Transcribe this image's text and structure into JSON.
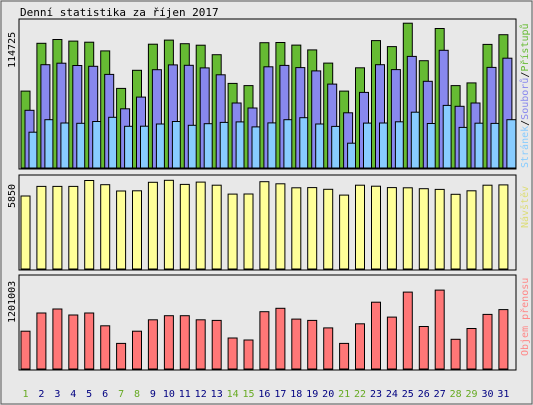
{
  "chart_data": [
    {
      "type": "bar",
      "title": "Denní statistika za říjen 2017",
      "ylabel_max": "114725",
      "legend": [
        "Stránek",
        "Souborů",
        "Přístupů"
      ],
      "categories": [
        "1",
        "2",
        "3",
        "4",
        "5",
        "6",
        "7",
        "8",
        "9",
        "10",
        "11",
        "12",
        "13",
        "14",
        "15",
        "16",
        "17",
        "18",
        "19",
        "20",
        "21",
        "22",
        "23",
        "24",
        "25",
        "26",
        "27",
        "28",
        "29",
        "30",
        "31"
      ],
      "ymax": 114725,
      "series": [
        {
          "name": "Přístupů",
          "color": "#66bb33",
          "values": [
            70000,
            113500,
            117000,
            115500,
            114500,
            106600,
            72500,
            89000,
            112700,
            116500,
            113200,
            111800,
            103200,
            77000,
            75000,
            114100,
            114300,
            111900,
            107500,
            95500,
            70000,
            91200,
            116000,
            110500,
            131800,
            97700,
            127000,
            75000,
            77500,
            112500,
            121400
          ]
        },
        {
          "name": "Souborů",
          "color": "#8888ee",
          "values": [
            52500,
            94100,
            95400,
            93300,
            92600,
            85200,
            53900,
            64600,
            89500,
            93900,
            93500,
            91100,
            84900,
            59200,
            54600,
            92100,
            93400,
            91400,
            88400,
            76400,
            50300,
            68800,
            94100,
            89600,
            101600,
            78900,
            107200,
            56200,
            59200,
            91600,
            100000
          ]
        },
        {
          "name": "Stránek",
          "color": "#88ccff",
          "values": [
            32600,
            44000,
            41000,
            40700,
            42300,
            46200,
            38000,
            38100,
            40100,
            42300,
            38900,
            40300,
            41500,
            42000,
            37400,
            41100,
            44000,
            45800,
            40100,
            37900,
            22600,
            40900,
            41000,
            42100,
            50800,
            40500,
            57000,
            37000,
            40800,
            40600,
            44000
          ]
        }
      ]
    },
    {
      "type": "bar",
      "ylabel_max": "5850",
      "legend": [
        "Návštěv"
      ],
      "categories": [
        "1",
        "2",
        "3",
        "4",
        "5",
        "6",
        "7",
        "8",
        "9",
        "10",
        "11",
        "12",
        "13",
        "14",
        "15",
        "16",
        "17",
        "18",
        "19",
        "20",
        "21",
        "22",
        "23",
        "24",
        "25",
        "26",
        "27",
        "28",
        "29",
        "30",
        "31"
      ],
      "ymax": 5850,
      "series": [
        {
          "name": "Návštěv",
          "color": "#ffff99",
          "values": [
            4800,
            5430,
            5430,
            5430,
            5820,
            5540,
            5130,
            5140,
            5700,
            5830,
            5560,
            5710,
            5510,
            4920,
            4930,
            5740,
            5600,
            5340,
            5350,
            5240,
            4860,
            5510,
            5440,
            5350,
            5340,
            5280,
            5230,
            4910,
            5140,
            5510,
            5530
          ]
        }
      ]
    },
    {
      "type": "bar",
      "ylabel_max": "1201003",
      "legend": [
        "Objem přenosu"
      ],
      "categories": [
        "1",
        "2",
        "3",
        "4",
        "5",
        "6",
        "7",
        "8",
        "9",
        "10",
        "11",
        "12",
        "13",
        "14",
        "15",
        "16",
        "17",
        "18",
        "19",
        "20",
        "21",
        "22",
        "23",
        "24",
        "25",
        "26",
        "27",
        "28",
        "29",
        "30",
        "31"
      ],
      "ymax": 1201003,
      "series": [
        {
          "name": "Objem přenosu",
          "color": "#ff7777",
          "values": [
            560000,
            830000,
            890000,
            800000,
            830000,
            640000,
            380000,
            560000,
            730000,
            790000,
            790000,
            730000,
            720000,
            460000,
            430000,
            850000,
            900000,
            740000,
            720000,
            610000,
            380000,
            670000,
            990000,
            770000,
            1140000,
            630000,
            1170000,
            440000,
            600000,
            810000,
            880000
          ]
        }
      ]
    }
  ],
  "x_label_colors": {
    "normal": "#000080",
    "weekend": "#66aa22"
  },
  "weekend_days": [
    "1",
    "7",
    "8",
    "14",
    "15",
    "21",
    "22",
    "28",
    "29"
  ]
}
